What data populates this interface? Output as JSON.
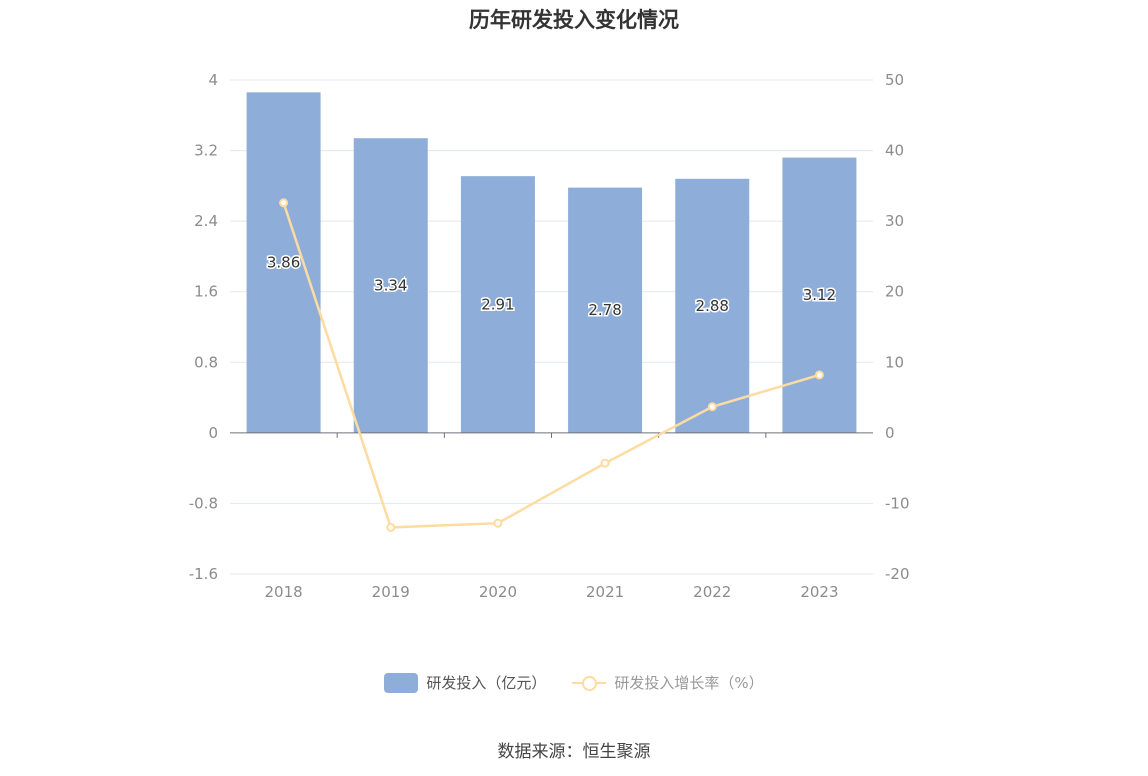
{
  "chart_title": "历年研发投入变化情况",
  "source": "数据来源：恒生聚源",
  "colors": {
    "bar": "#8eaed9",
    "line": "#fddba1",
    "grid": "#e3e7f1",
    "axis": "#6e7079",
    "text": "#8c8c8c"
  },
  "legend": [
    {
      "label": "研发投入（亿元）",
      "kind": "bar"
    },
    {
      "label": "研发投入增长率（%）",
      "kind": "line"
    }
  ],
  "chart_data": {
    "type": "bar",
    "title": "历年研发投入变化情况",
    "categories": [
      "2018",
      "2019",
      "2020",
      "2021",
      "2022",
      "2023"
    ],
    "series": [
      {
        "name": "研发投入（亿元）",
        "type": "bar",
        "axis": "left",
        "values": [
          3.86,
          3.34,
          2.91,
          2.78,
          2.88,
          3.12
        ],
        "labels": [
          "3.86",
          "3.34",
          "2.91",
          "2.78",
          "2.88",
          "3.12"
        ]
      },
      {
        "name": "研发投入增长率（%）",
        "type": "line",
        "axis": "right",
        "values": [
          32.6,
          -13.4,
          -12.8,
          -4.3,
          3.7,
          8.2
        ]
      }
    ],
    "y_left": {
      "ticks": [
        "4",
        "3.2",
        "2.4",
        "1.6",
        "0.8",
        "0",
        "-0.8",
        "-1.6"
      ],
      "range": [
        -1.6,
        4
      ]
    },
    "y_right": {
      "ticks": [
        "50",
        "40",
        "30",
        "20",
        "10",
        "0",
        "-10",
        "-20"
      ],
      "range": [
        -20,
        50
      ]
    },
    "grid": true,
    "legend_position": "bottom"
  }
}
